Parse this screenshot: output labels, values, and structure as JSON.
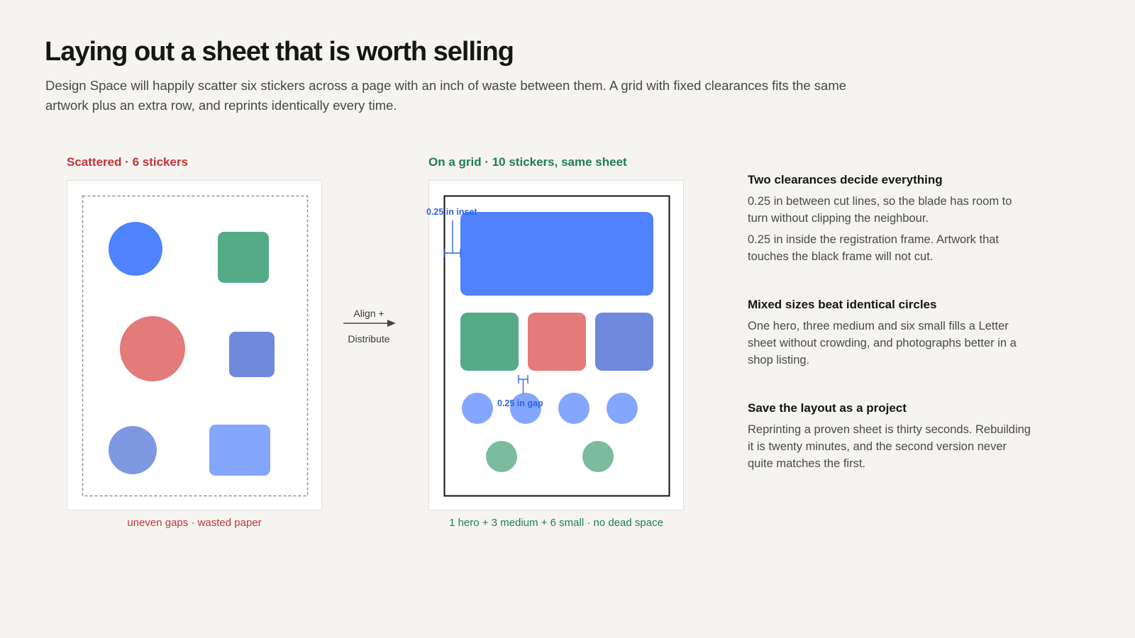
{
  "header": {
    "title": "Laying out a sheet that is worth selling",
    "intro": "Design Space will happily scatter six stickers across a page with an inch of waste between them. A grid with fixed clearances fits the same artwork plus an extra row, and reprints identically every time."
  },
  "left_panel": {
    "label": "Scattered · 6 stickers",
    "caption": "uneven gaps · wasted paper"
  },
  "transition": {
    "line1": "Align +",
    "line2": "Distribute"
  },
  "right_panel": {
    "label": "On a grid · 10 stickers, same sheet",
    "caption": "1 hero + 3 medium + 6 small · no dead space",
    "inset_label": "0.25 in inset",
    "gap_label": "0.25 in gap"
  },
  "notes": [
    {
      "heading": "Two clearances decide everything",
      "paragraphs": [
        "0.25 in between cut lines, so the blade has room to turn without clipping the neighbour.",
        "0.25 in inside the registration frame. Artwork that touches the black frame will not cut."
      ]
    },
    {
      "heading": "Mixed sizes beat identical circles",
      "paragraphs": [
        "One hero, three medium and six small fills a Letter sheet without crowding, and photographs better in a shop listing."
      ]
    },
    {
      "heading": "Save the layout as a project",
      "paragraphs": [
        "Reprinting a proven sheet is thirty seconds. Rebuilding it is twenty minutes, and the second version never quite matches the first."
      ]
    }
  ],
  "colors": {
    "blue": "#4f82fc",
    "green": "#55aa88",
    "red": "#e27b79",
    "periwinkle": "#7189dc",
    "light_blue": "#84a6fd",
    "light_green": "#7bbba0",
    "dim_blue": "#2f66e0",
    "bad_red": "#c0353a",
    "good_green": "#1f7d52"
  }
}
